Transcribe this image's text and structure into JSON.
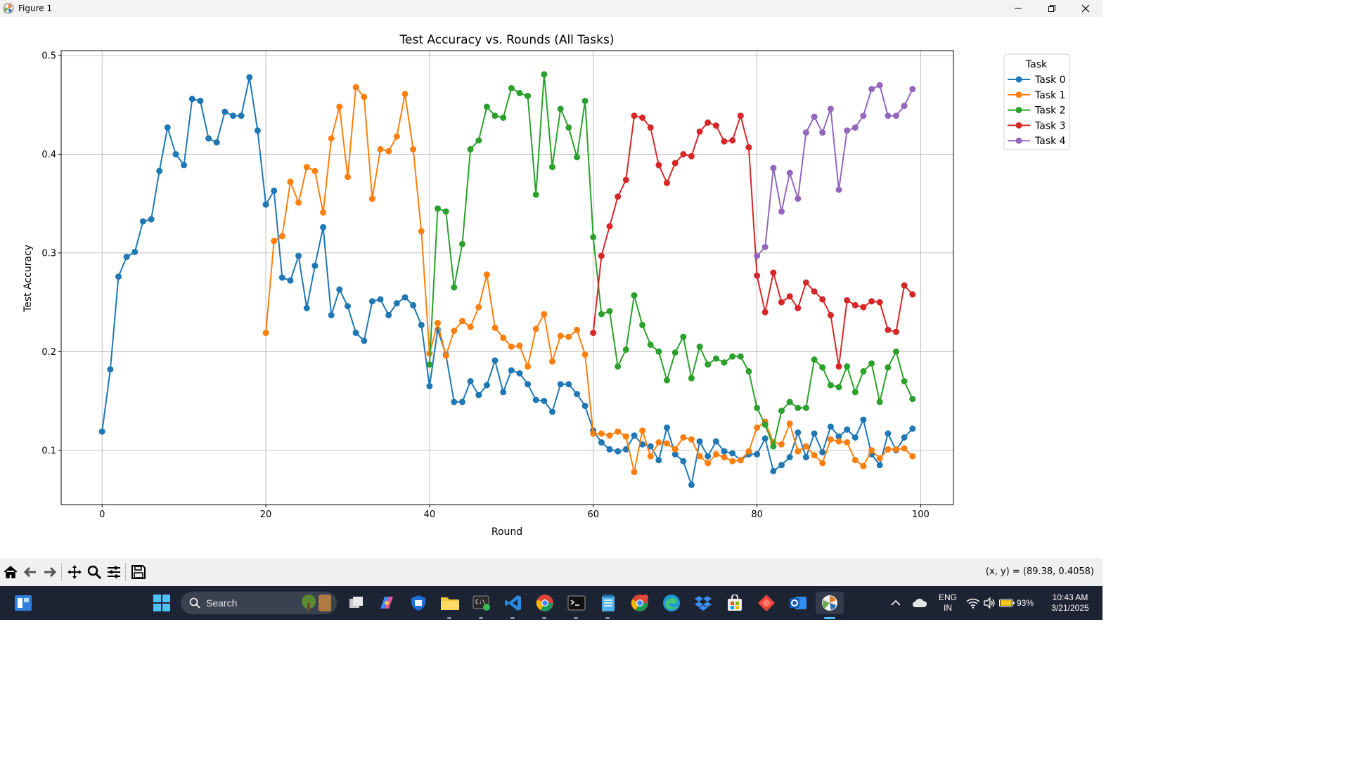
{
  "window": {
    "title": "Figure 1"
  },
  "chart_data": {
    "type": "line",
    "title": "Test Accuracy vs. Rounds (All Tasks)",
    "xlabel": "Round",
    "ylabel": "Test Accuracy",
    "xlim": [
      -5,
      104
    ],
    "ylim": [
      0.045,
      0.505
    ],
    "xticks": [
      0,
      20,
      40,
      60,
      80,
      100
    ],
    "yticks": [
      0.1,
      0.2,
      0.3,
      0.4,
      0.5
    ],
    "grid": true,
    "legend": {
      "title": "Task",
      "placement": "outside-top-right"
    },
    "series": [
      {
        "name": "Task 0",
        "color": "#1f77b4",
        "x_start": 0,
        "values": [
          0.119,
          0.182,
          0.276,
          0.296,
          0.301,
          0.332,
          0.334,
          0.383,
          0.427,
          0.4,
          0.389,
          0.456,
          0.454,
          0.416,
          0.412,
          0.443,
          0.439,
          0.439,
          0.478,
          0.424,
          0.349,
          0.363,
          0.275,
          0.272,
          0.297,
          0.244,
          0.287,
          0.326,
          0.237,
          0.263,
          0.246,
          0.219,
          0.211,
          0.251,
          0.253,
          0.237,
          0.249,
          0.255,
          0.247,
          0.227,
          0.165,
          0.222,
          0.197,
          0.149,
          0.149,
          0.17,
          0.156,
          0.166,
          0.191,
          0.159,
          0.181,
          0.178,
          0.167,
          0.151,
          0.15,
          0.139,
          0.167,
          0.167,
          0.157,
          0.145,
          0.12,
          0.108,
          0.101,
          0.099,
          0.101,
          0.115,
          0.106,
          0.104,
          0.09,
          0.123,
          0.096,
          0.089,
          0.065,
          0.109,
          0.094,
          0.109,
          0.099,
          0.097,
          0.09,
          0.096,
          0.096,
          0.112,
          0.079,
          0.085,
          0.093,
          0.118,
          0.093,
          0.117,
          0.098,
          0.124,
          0.114,
          0.121,
          0.113,
          0.131,
          0.096,
          0.085,
          0.117,
          0.1,
          0.113,
          0.122
        ]
      },
      {
        "name": "Task 1",
        "color": "#ff7f0e",
        "x_start": 20,
        "values": [
          0.219,
          0.312,
          0.317,
          0.372,
          0.351,
          0.387,
          0.383,
          0.341,
          0.416,
          0.448,
          0.377,
          0.468,
          0.458,
          0.355,
          0.405,
          0.403,
          0.418,
          0.461,
          0.405,
          0.322,
          0.198,
          0.229,
          0.196,
          0.221,
          0.231,
          0.225,
          0.245,
          0.278,
          0.224,
          0.214,
          0.205,
          0.206,
          0.185,
          0.223,
          0.238,
          0.19,
          0.216,
          0.215,
          0.222,
          0.197,
          0.117,
          0.117,
          0.115,
          0.119,
          0.114,
          0.078,
          0.12,
          0.094,
          0.108,
          0.107,
          0.101,
          0.113,
          0.111,
          0.094,
          0.087,
          0.096,
          0.093,
          0.089,
          0.09,
          0.099,
          0.123,
          0.129,
          0.108,
          0.106,
          0.127,
          0.099,
          0.104,
          0.095,
          0.087,
          0.111,
          0.109,
          0.108,
          0.09,
          0.084,
          0.1,
          0.092,
          0.101,
          0.101,
          0.102,
          0.094
        ]
      },
      {
        "name": "Task 2",
        "color": "#2ca02c",
        "x_start": 40,
        "values": [
          0.187,
          0.345,
          0.342,
          0.265,
          0.309,
          0.405,
          0.414,
          0.448,
          0.439,
          0.437,
          0.467,
          0.462,
          0.459,
          0.359,
          0.481,
          0.387,
          0.446,
          0.427,
          0.397,
          0.454,
          0.316,
          0.238,
          0.241,
          0.185,
          0.202,
          0.257,
          0.227,
          0.207,
          0.2,
          0.171,
          0.199,
          0.215,
          0.173,
          0.205,
          0.187,
          0.193,
          0.189,
          0.195,
          0.195,
          0.18,
          0.143,
          0.126,
          0.104,
          0.14,
          0.149,
          0.143,
          0.143,
          0.192,
          0.184,
          0.166,
          0.164,
          0.185,
          0.159,
          0.18,
          0.188,
          0.149,
          0.184,
          0.2,
          0.17,
          0.152
        ]
      },
      {
        "name": "Task 3",
        "color": "#d62728",
        "x_start": 60,
        "values": [
          0.219,
          0.297,
          0.327,
          0.357,
          0.374,
          0.439,
          0.437,
          0.427,
          0.389,
          0.371,
          0.391,
          0.4,
          0.398,
          0.423,
          0.432,
          0.429,
          0.413,
          0.414,
          0.439,
          0.407,
          0.277,
          0.24,
          0.28,
          0.25,
          0.256,
          0.244,
          0.27,
          0.261,
          0.253,
          0.237,
          0.185,
          0.252,
          0.247,
          0.245,
          0.251,
          0.25,
          0.222,
          0.22,
          0.267,
          0.258
        ]
      },
      {
        "name": "Task 4",
        "color": "#9467bd",
        "x_start": 80,
        "values": [
          0.297,
          0.306,
          0.386,
          0.342,
          0.381,
          0.355,
          0.422,
          0.438,
          0.422,
          0.446,
          0.364,
          0.424,
          0.427,
          0.439,
          0.466,
          0.47,
          0.439,
          0.439,
          0.449,
          0.466
        ]
      }
    ]
  },
  "toolbar": {
    "icons": [
      "home-icon",
      "back-icon",
      "forward-icon",
      "pan-icon",
      "zoom-icon",
      "configure-subplots-icon",
      "save-icon"
    ],
    "coords": "(x, y) = (89.38, 0.4058)"
  },
  "taskbar": {
    "search_label": "Search",
    "lang_1": "ENG",
    "lang_2": "IN",
    "battery": "93%",
    "time": "10:43 AM",
    "date": "3/21/2025"
  }
}
